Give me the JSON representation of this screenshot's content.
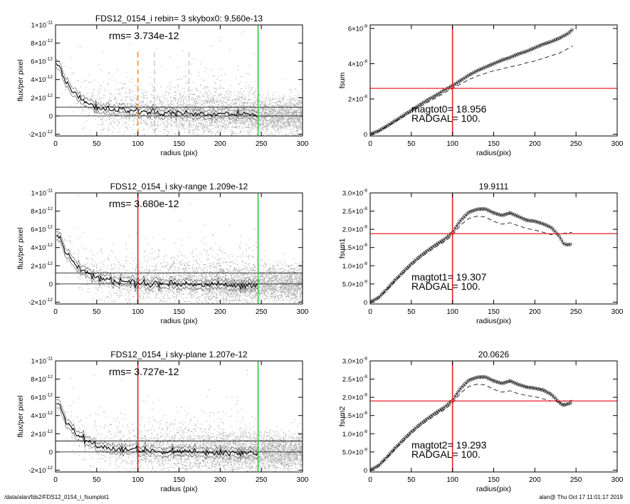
{
  "footer": {
    "path": "/data/alan/fds2/FDS12_0154_i_fsumplot1",
    "stamp": "alan@  Thu Oct 17 11:01:17 2019"
  },
  "colors": {
    "scatter": "#a9a9a9",
    "red_line": "#e8202a",
    "green_line": "#33cc33",
    "orange_dash": "#ff8c1a",
    "gray_dash": "#b0b0b0"
  },
  "chart_data": [
    {
      "id": "profile-0",
      "type": "scatter",
      "title": "FDS12_0154_i rebin= 3    skybox0:  9.560e-13",
      "annotation": "rms= 3.734e-12",
      "xlabel": "radius (pix)",
      "ylabel": "flux/per pixel",
      "xlim": [
        0,
        300
      ],
      "ylim": [
        -2.2e-12,
        1e-11
      ],
      "xticks": [
        0,
        50,
        100,
        150,
        200,
        250,
        300
      ],
      "yticks": [
        {
          "v": -2e-12,
          "m": "-2",
          "e": "-12"
        },
        {
          "v": 0,
          "m": "0",
          "e": ""
        },
        {
          "v": 2e-12,
          "m": "2",
          "e": "-12"
        },
        {
          "v": 4e-12,
          "m": "4",
          "e": "-12"
        },
        {
          "v": 6e-12,
          "m": "6",
          "e": "-12"
        },
        {
          "v": 8e-12,
          "m": "8",
          "e": "-12"
        },
        {
          "v": 1e-11,
          "m": "1",
          "e": "-11"
        }
      ],
      "tick_prefix": "×10",
      "sky_level": 9.56e-13,
      "rms": 3.734e-12,
      "vlines": [
        {
          "x": 100,
          "color": "orange_dash",
          "style": "dash",
          "y_from": 7e-12
        },
        {
          "x": 120,
          "color": "gray_dash",
          "style": "dash",
          "y_from": 7e-12
        },
        {
          "x": 162,
          "color": "gray_dash",
          "style": "dash",
          "y_from": 7e-12
        },
        {
          "x": 246,
          "color": "green_line",
          "style": "solid"
        }
      ],
      "profile_x": [
        2,
        6,
        10,
        14,
        18,
        22,
        26,
        30,
        35,
        40,
        45,
        50,
        60,
        70,
        80,
        90,
        100,
        110,
        120,
        130,
        140,
        150,
        160,
        170,
        180,
        190,
        200,
        210,
        220,
        230,
        240,
        246
      ],
      "profile_y": [
        5.8e-12,
        5.2e-12,
        4.2e-12,
        3.6e-12,
        3e-12,
        2.6e-12,
        2.3e-12,
        2e-12,
        1.6e-12,
        1.4e-12,
        1.15e-12,
        1e-12,
        8e-13,
        6e-13,
        7e-13,
        5e-13,
        5e-13,
        4e-13,
        4e-13,
        3e-13,
        4e-13,
        3e-13,
        3e-13,
        2e-13,
        2e-13,
        2e-13,
        3e-13,
        1e-13,
        2e-13,
        2e-13,
        1e-13,
        1e-13
      ]
    },
    {
      "id": "growth-0",
      "type": "line",
      "title": "",
      "annotation_lines": [
        "magtot0=  18.956",
        "RADGAL=    100."
      ],
      "xlabel": "radius(pix)",
      "ylabel": "fsum",
      "xlim": [
        0,
        300
      ],
      "ylim": [
        -1e-09,
        6.2e-08
      ],
      "xticks": [
        0,
        50,
        100,
        150,
        200,
        250,
        300
      ],
      "yticks": [
        {
          "v": 0,
          "m": "0",
          "e": ""
        },
        {
          "v": 2e-08,
          "m": "2",
          "e": "-8"
        },
        {
          "v": 4e-08,
          "m": "4",
          "e": "-8"
        },
        {
          "v": 6e-08,
          "m": "6",
          "e": "-8"
        }
      ],
      "tick_prefix": "×10",
      "hline": 2.6e-08,
      "vline": 100,
      "series": [
        {
          "style": "markers",
          "x": [
            0,
            10,
            20,
            30,
            40,
            50,
            60,
            70,
            80,
            90,
            100,
            110,
            120,
            130,
            140,
            150,
            160,
            170,
            180,
            190,
            200,
            210,
            220,
            230,
            240,
            246
          ],
          "y": [
            0,
            1.8e-09,
            4.5e-09,
            7.5e-09,
            1.05e-08,
            1.35e-08,
            1.65e-08,
            1.95e-08,
            2.2e-08,
            2.5e-08,
            2.75e-08,
            3.05e-08,
            3.35e-08,
            3.6e-08,
            3.8e-08,
            4e-08,
            4.2e-08,
            4.35e-08,
            4.55e-08,
            4.7e-08,
            4.9e-08,
            5.1e-08,
            5.25e-08,
            5.45e-08,
            5.7e-08,
            5.95e-08
          ]
        },
        {
          "style": "dashed",
          "x": [
            0,
            10,
            20,
            30,
            40,
            50,
            60,
            70,
            80,
            90,
            100,
            110,
            120,
            130,
            140,
            150,
            160,
            170,
            180,
            190,
            200,
            210,
            220,
            230,
            240,
            246
          ],
          "y": [
            0,
            1.6e-09,
            4.2e-09,
            7e-09,
            9.8e-09,
            1.27e-08,
            1.55e-08,
            1.82e-08,
            2.07e-08,
            2.33e-08,
            2.6e-08,
            2.85e-08,
            3.1e-08,
            3.3e-08,
            3.45e-08,
            3.6e-08,
            3.7e-08,
            3.82e-08,
            3.92e-08,
            4.05e-08,
            4.15e-08,
            4.3e-08,
            4.45e-08,
            4.6e-08,
            4.85e-08,
            5e-08
          ]
        }
      ]
    },
    {
      "id": "profile-1",
      "type": "scatter",
      "title": "FDS12_0154_i sky-range  1.209e-12",
      "annotation": "rms= 3.680e-12",
      "xlabel": "radius (pix)",
      "ylabel": "flux/per pixel",
      "xlim": [
        0,
        300
      ],
      "ylim": [
        -2.2e-12,
        1e-11
      ],
      "xticks": [
        0,
        50,
        100,
        150,
        200,
        250,
        300
      ],
      "yticks": [
        {
          "v": -2e-12,
          "m": "-2",
          "e": "-12"
        },
        {
          "v": 0,
          "m": "0",
          "e": ""
        },
        {
          "v": 2e-12,
          "m": "2",
          "e": "-12"
        },
        {
          "v": 4e-12,
          "m": "4",
          "e": "-12"
        },
        {
          "v": 6e-12,
          "m": "6",
          "e": "-12"
        },
        {
          "v": 8e-12,
          "m": "8",
          "e": "-12"
        },
        {
          "v": 1e-11,
          "m": "1",
          "e": "-11"
        }
      ],
      "tick_prefix": "×10",
      "sky_level": 1.209e-12,
      "rms": 3.68e-12,
      "vlines": [
        {
          "x": 100,
          "color": "red_line",
          "style": "solid"
        },
        {
          "x": 246,
          "color": "green_line",
          "style": "solid"
        }
      ],
      "profile_x": [
        2,
        6,
        10,
        14,
        18,
        22,
        26,
        30,
        35,
        40,
        45,
        50,
        60,
        70,
        80,
        90,
        100,
        110,
        120,
        130,
        140,
        150,
        160,
        170,
        180,
        190,
        200,
        210,
        220,
        230,
        240,
        246
      ],
      "profile_y": [
        5.5e-12,
        4.9e-12,
        3.9e-12,
        3.3e-12,
        2.7e-12,
        2.3e-12,
        2e-12,
        1.7e-12,
        1.3e-12,
        1.1e-12,
        8.5e-13,
        7e-13,
        5e-13,
        3e-13,
        4e-13,
        2e-13,
        2e-13,
        1e-13,
        1e-13,
        0,
        1e-13,
        0,
        0,
        -1e-13,
        -1e-13,
        -1e-13,
        0,
        -2e-13,
        -1e-13,
        -1e-13,
        -2e-13,
        -2e-13
      ]
    },
    {
      "id": "growth-1",
      "type": "line",
      "title": "19.9111",
      "annotation_lines": [
        "magtot1=  19.307",
        "RADGAL=    100."
      ],
      "xlabel": "radius(pix)",
      "ylabel": "fsum1",
      "xlim": [
        0,
        300
      ],
      "ylim": [
        -5e-10,
        3e-08
      ],
      "xticks": [
        0,
        50,
        100,
        150,
        200,
        250,
        300
      ],
      "yticks": [
        {
          "v": 0,
          "m": "0",
          "e": ""
        },
        {
          "v": 5e-09,
          "m": "5.0",
          "e": "-9"
        },
        {
          "v": 1e-08,
          "m": "1.0",
          "e": "-8"
        },
        {
          "v": 1.5e-08,
          "m": "1.5",
          "e": "-8"
        },
        {
          "v": 2e-08,
          "m": "2.0",
          "e": "-8"
        },
        {
          "v": 2.5e-08,
          "m": "2.5",
          "e": "-8"
        },
        {
          "v": 3e-08,
          "m": "3.0",
          "e": "-8"
        }
      ],
      "tick_prefix": "×10",
      "hline": 1.88e-08,
      "vline": 100,
      "series": [
        {
          "style": "markers",
          "x": [
            0,
            10,
            20,
            30,
            40,
            50,
            60,
            70,
            80,
            90,
            100,
            110,
            120,
            130,
            140,
            150,
            160,
            170,
            180,
            190,
            200,
            210,
            220,
            230,
            235,
            240,
            245
          ],
          "y": [
            0,
            1.2e-09,
            3.5e-09,
            6e-09,
            8.3e-09,
            1.05e-08,
            1.25e-08,
            1.42e-08,
            1.58e-08,
            1.72e-08,
            1.92e-08,
            2.25e-08,
            2.47e-08,
            2.55e-08,
            2.56e-08,
            2.45e-08,
            2.38e-08,
            2.45e-08,
            2.35e-08,
            2.25e-08,
            2.22e-08,
            2.15e-08,
            2.05e-08,
            1.8e-08,
            1.6e-08,
            1.57e-08,
            1.6e-08
          ]
        },
        {
          "style": "dashed",
          "x": [
            0,
            10,
            20,
            30,
            40,
            50,
            60,
            70,
            80,
            90,
            100,
            110,
            120,
            130,
            140,
            150,
            160,
            170,
            180,
            190,
            200,
            210,
            220,
            230,
            240,
            245
          ],
          "y": [
            0,
            1.1e-09,
            3.3e-09,
            5.7e-09,
            7.9e-09,
            1e-08,
            1.2e-08,
            1.37e-08,
            1.52e-08,
            1.66e-08,
            1.84e-08,
            2.12e-08,
            2.3e-08,
            2.36e-08,
            2.34e-08,
            2.22e-08,
            2.14e-08,
            2.18e-08,
            2.1e-08,
            2.02e-08,
            1.98e-08,
            1.92e-08,
            1.85e-08,
            1.88e-08,
            1.9e-08,
            1.92e-08
          ]
        }
      ]
    },
    {
      "id": "profile-2",
      "type": "scatter",
      "title": "FDS12_0154_i sky-plane  1.207e-12",
      "annotation": "rms= 3.727e-12",
      "xlabel": "radius (pix)",
      "ylabel": "flux/per pixel",
      "xlim": [
        0,
        300
      ],
      "ylim": [
        -2.2e-12,
        1e-11
      ],
      "xticks": [
        0,
        50,
        100,
        150,
        200,
        250,
        300
      ],
      "yticks": [
        {
          "v": -2e-12,
          "m": "-2",
          "e": "-12"
        },
        {
          "v": 0,
          "m": "0",
          "e": ""
        },
        {
          "v": 2e-12,
          "m": "2",
          "e": "-12"
        },
        {
          "v": 4e-12,
          "m": "4",
          "e": "-12"
        },
        {
          "v": 6e-12,
          "m": "6",
          "e": "-12"
        },
        {
          "v": 8e-12,
          "m": "8",
          "e": "-12"
        },
        {
          "v": 1e-11,
          "m": "1",
          "e": "-11"
        }
      ],
      "tick_prefix": "×10",
      "sky_level": 1.207e-12,
      "rms": 3.727e-12,
      "vlines": [
        {
          "x": 100,
          "color": "red_line",
          "style": "solid"
        },
        {
          "x": 246,
          "color": "green_line",
          "style": "solid"
        }
      ],
      "profile_x": [
        2,
        6,
        10,
        14,
        18,
        22,
        26,
        30,
        35,
        40,
        45,
        50,
        60,
        70,
        80,
        90,
        100,
        110,
        120,
        130,
        140,
        150,
        160,
        170,
        180,
        190,
        200,
        210,
        220,
        230,
        240,
        246
      ],
      "profile_y": [
        5.5e-12,
        4.9e-12,
        3.9e-12,
        3.3e-12,
        2.7e-12,
        2.3e-12,
        2e-12,
        1.7e-12,
        1.3e-12,
        1.1e-12,
        8.5e-13,
        7e-13,
        5e-13,
        3e-13,
        4e-13,
        2e-13,
        2e-13,
        1e-13,
        1e-13,
        0,
        1e-13,
        0,
        0,
        -1e-13,
        -1e-13,
        -1e-13,
        0,
        -2e-13,
        -1e-13,
        -1e-13,
        -2e-13,
        -2e-13
      ]
    },
    {
      "id": "growth-2",
      "type": "line",
      "title": "20.0626",
      "annotation_lines": [
        "magtot2=  19.293",
        "RADGAL=    100."
      ],
      "xlabel": "radius(pix)",
      "ylabel": "fsum2",
      "xlim": [
        0,
        300
      ],
      "ylim": [
        -5e-10,
        3e-08
      ],
      "xticks": [
        0,
        50,
        100,
        150,
        200,
        250,
        300
      ],
      "yticks": [
        {
          "v": 0,
          "m": "0",
          "e": ""
        },
        {
          "v": 5e-09,
          "m": "5.0",
          "e": "-9"
        },
        {
          "v": 1e-08,
          "m": "1.0",
          "e": "-8"
        },
        {
          "v": 1.5e-08,
          "m": "1.5",
          "e": "-8"
        },
        {
          "v": 2e-08,
          "m": "2.0",
          "e": "-8"
        },
        {
          "v": 2.5e-08,
          "m": "2.5",
          "e": "-8"
        },
        {
          "v": 3e-08,
          "m": "3.0",
          "e": "-8"
        }
      ],
      "tick_prefix": "×10",
      "hline": 1.9e-08,
      "vline": 100,
      "series": [
        {
          "style": "markers",
          "x": [
            0,
            10,
            20,
            30,
            40,
            50,
            60,
            70,
            80,
            90,
            100,
            110,
            120,
            130,
            140,
            150,
            160,
            170,
            180,
            190,
            200,
            210,
            220,
            230,
            235,
            240,
            245
          ],
          "y": [
            0,
            1.2e-09,
            3.5e-09,
            6e-09,
            8.3e-09,
            1.05e-08,
            1.25e-08,
            1.42e-08,
            1.58e-08,
            1.72e-08,
            1.92e-08,
            2.25e-08,
            2.47e-08,
            2.55e-08,
            2.56e-08,
            2.45e-08,
            2.38e-08,
            2.45e-08,
            2.35e-08,
            2.28e-08,
            2.25e-08,
            2.2e-08,
            2.08e-08,
            1.85e-08,
            1.78e-08,
            1.82e-08,
            1.85e-08
          ]
        },
        {
          "style": "dashed",
          "x": [
            0,
            10,
            20,
            30,
            40,
            50,
            60,
            70,
            80,
            90,
            100,
            110,
            120,
            130,
            140,
            150,
            160,
            170,
            180,
            190,
            200,
            210,
            220,
            230,
            240,
            245
          ],
          "y": [
            0,
            1.1e-09,
            3.3e-09,
            5.7e-09,
            7.9e-09,
            1e-08,
            1.2e-08,
            1.37e-08,
            1.52e-08,
            1.66e-08,
            1.84e-08,
            2.12e-08,
            2.3e-08,
            2.36e-08,
            2.34e-08,
            2.22e-08,
            2.14e-08,
            2.18e-08,
            2.1e-08,
            2.05e-08,
            2.02e-08,
            1.96e-08,
            1.9e-08,
            1.88e-08,
            1.9e-08,
            1.92e-08
          ]
        }
      ]
    }
  ]
}
